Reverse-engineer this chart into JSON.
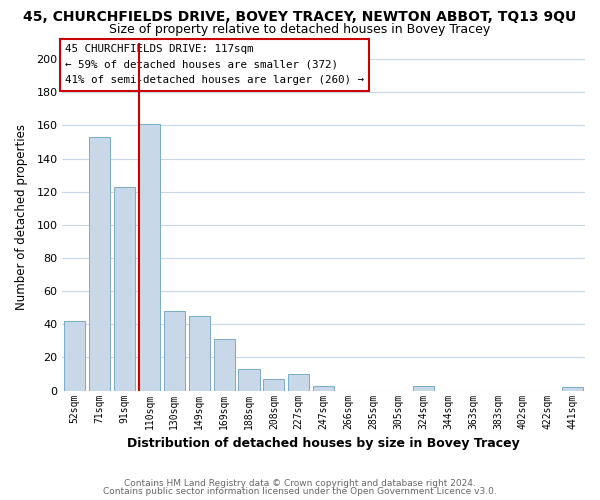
{
  "title": "45, CHURCHFIELDS DRIVE, BOVEY TRACEY, NEWTON ABBOT, TQ13 9QU",
  "subtitle": "Size of property relative to detached houses in Bovey Tracey",
  "xlabel": "Distribution of detached houses by size in Bovey Tracey",
  "ylabel": "Number of detached properties",
  "bar_labels": [
    "52sqm",
    "71sqm",
    "91sqm",
    "110sqm",
    "130sqm",
    "149sqm",
    "169sqm",
    "188sqm",
    "208sqm",
    "227sqm",
    "247sqm",
    "266sqm",
    "285sqm",
    "305sqm",
    "324sqm",
    "344sqm",
    "363sqm",
    "383sqm",
    "402sqm",
    "422sqm",
    "441sqm"
  ],
  "bar_values": [
    42,
    153,
    123,
    161,
    48,
    45,
    31,
    13,
    7,
    10,
    3,
    0,
    0,
    0,
    3,
    0,
    0,
    0,
    0,
    0,
    2
  ],
  "bar_color": "#c8d8e8",
  "bar_edge_color": "#7aaac8",
  "highlight_line_color": "#cc0000",
  "highlight_bar_index": 3,
  "ylim": [
    0,
    210
  ],
  "yticks": [
    0,
    20,
    40,
    60,
    80,
    100,
    120,
    140,
    160,
    180,
    200
  ],
  "annotation_line1": "45 CHURCHFIELDS DRIVE: 117sqm",
  "annotation_line2": "← 59% of detached houses are smaller (372)",
  "annotation_line3": "41% of semi-detached houses are larger (260) →",
  "footer_line1": "Contains HM Land Registry data © Crown copyright and database right 2024.",
  "footer_line2": "Contains public sector information licensed under the Open Government Licence v3.0.",
  "bg_color": "#ffffff",
  "grid_color": "#c8d8e8",
  "title_fontsize": 10,
  "subtitle_fontsize": 9
}
